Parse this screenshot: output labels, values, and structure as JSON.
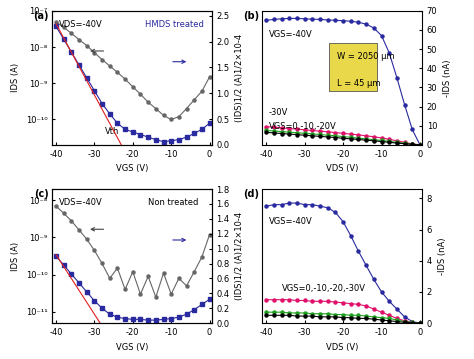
{
  "chart_data": [
    {
      "type": "line",
      "title": "(a)",
      "x_label": "VGS (V)",
      "y_label": "IDS (A)",
      "y2_label": "(IDS)1/2 (A)1/2×10-4",
      "log": "y",
      "x": [
        -40,
        -38,
        -36,
        -34,
        -32,
        -30,
        -28,
        -26,
        -24,
        -22,
        -20,
        -18,
        -16,
        -14,
        -12,
        -10,
        -8,
        -6,
        -4,
        -2,
        0
      ],
      "xlim": [
        -41,
        0.5
      ],
      "xticks": [
        -40,
        -30,
        -20,
        -10,
        0
      ],
      "ylim": [
        2e-11,
        1e-07
      ],
      "yticks": [
        {
          "value": 1e-10,
          "label": "10⁻¹⁰"
        },
        {
          "value": 1e-09,
          "label": "10⁻⁹"
        },
        {
          "value": 1e-08,
          "label": "10⁻⁸"
        },
        {
          "value": 1e-07,
          "label": "10⁻⁷"
        }
      ],
      "y2lim": [
        0.0,
        2.6
      ],
      "y2ticks": [
        0.0,
        0.5,
        1.0,
        1.5,
        2.0,
        2.5
      ],
      "annotations": [
        "VDS=-40V",
        "HMDS treated",
        "Vth"
      ],
      "series": [
        {
          "color": "#666666",
          "marker": "circle",
          "line_style": "solid",
          "values": [
            5e-08,
            3.5e-08,
            2.4e-08,
            1.6e-08,
            1.1e-08,
            7e-09,
            4.5e-09,
            3e-09,
            2e-09,
            1.3e-09,
            8e-10,
            5e-10,
            3e-10,
            2e-10,
            1.3e-10,
            1e-10,
            1.2e-10,
            2e-10,
            3.5e-10,
            6e-10,
            1.5e-09
          ]
        },
        {
          "color": "#2a2aa0",
          "marker": "square",
          "line_style": "solid",
          "axis": "y2",
          "values": [
            2.3,
            2.05,
            1.8,
            1.55,
            1.3,
            1.05,
            0.8,
            0.6,
            0.42,
            0.3,
            0.25,
            0.2,
            0.15,
            0.1,
            0.06,
            0.08,
            0.1,
            0.15,
            0.22,
            0.3,
            0.42
          ]
        },
        {
          "color": "#e02020",
          "line_style": "solid",
          "axis": "y2",
          "x": [
            -40,
            -23
          ],
          "values": [
            2.35,
            0.0
          ]
        }
      ]
    },
    {
      "type": "line",
      "title": "(b)",
      "x_label": "VDS (V)",
      "y_label": "-IDS (nA)",
      "x": [
        -40,
        -38,
        -36,
        -34,
        -32,
        -30,
        -28,
        -26,
        -24,
        -22,
        -20,
        -18,
        -16,
        -14,
        -12,
        -10,
        -8,
        -6,
        -4,
        -2,
        0
      ],
      "xlim": [
        -41,
        0.5
      ],
      "xticks": [
        -40,
        -30,
        -20,
        -10,
        0
      ],
      "ylim": [
        0,
        70
      ],
      "yticks": [
        0,
        10,
        20,
        30,
        40,
        50,
        60,
        70
      ],
      "annotations": [
        "VGS=-40V",
        "-30V",
        "VGS=0,-10,-20V",
        "W = 2050 µm",
        "L = 45 µm"
      ],
      "series": [
        {
          "color": "#2a2aa0",
          "marker": "circle",
          "line_style": "solid",
          "values": [
            65,
            65.5,
            65.8,
            66,
            66,
            65.8,
            65.6,
            65.5,
            65.2,
            65,
            64.8,
            64.5,
            64,
            63,
            61,
            57,
            48,
            35,
            21,
            8,
            0
          ]
        },
        {
          "color": "#e0106a",
          "marker": "circle",
          "line_style": "solid",
          "values": [
            9.5,
            9.2,
            8.8,
            8.5,
            8.2,
            7.8,
            7.5,
            7.1,
            6.8,
            6.4,
            6.0,
            5.6,
            5.2,
            4.7,
            4.2,
            3.6,
            2.9,
            2.1,
            1.3,
            0.5,
            0
          ]
        },
        {
          "color": "#20a020",
          "marker": "circle",
          "line_style": "solid",
          "values": [
            7.5,
            7.2,
            6.9,
            6.6,
            6.3,
            6.0,
            5.7,
            5.4,
            5.0,
            4.7,
            4.3,
            3.9,
            3.5,
            3.1,
            2.7,
            2.3,
            1.8,
            1.3,
            0.8,
            0.3,
            0
          ]
        },
        {
          "color": "#000000",
          "marker": "circle",
          "line_style": "solid",
          "values": [
            6.5,
            6.2,
            5.9,
            5.6,
            5.3,
            5.0,
            4.7,
            4.4,
            4.1,
            3.8,
            3.4,
            3.1,
            2.8,
            2.4,
            2.1,
            1.7,
            1.3,
            0.9,
            0.6,
            0.2,
            0
          ]
        }
      ]
    },
    {
      "type": "line",
      "title": "(c)",
      "x_label": "VGS (V)",
      "y_label": "IDS (A)",
      "y2_label": "(IDS)1/2 (A)1/2×10-4",
      "log": "y",
      "x": [
        -40,
        -38,
        -36,
        -34,
        -32,
        -30,
        -28,
        -26,
        -24,
        -22,
        -20,
        -18,
        -16,
        -14,
        -12,
        -10,
        -8,
        -6,
        -4,
        -2,
        0
      ],
      "xlim": [
        -41,
        0.5
      ],
      "xticks": [
        -40,
        -30,
        -20,
        -10,
        0
      ],
      "ylim": [
        5e-12,
        2e-08
      ],
      "yticks": [
        {
          "value": 1e-11,
          "label": "10⁻¹¹"
        },
        {
          "value": 1e-10,
          "label": "10⁻¹⁰"
        },
        {
          "value": 1e-09,
          "label": "10⁻⁹"
        },
        {
          "value": 1e-08,
          "label": "10⁻⁸"
        }
      ],
      "y2lim": [
        0.0,
        1.8
      ],
      "y2ticks": [
        0.0,
        0.2,
        0.4,
        0.6,
        0.8,
        1.0,
        1.2,
        1.4,
        1.6,
        1.8
      ],
      "annotations": [
        "VDS=-40V",
        "Non treated"
      ],
      "series": [
        {
          "color": "#666666",
          "marker": "circle",
          "line_style": "solid",
          "values": [
            7e-09,
            4.5e-09,
            2.8e-09,
            1.6e-09,
            9e-10,
            4.5e-10,
            2e-10,
            8e-11,
            1.5e-10,
            4e-11,
            1.2e-10,
            3e-11,
            9e-11,
            2.5e-11,
            1.1e-10,
            3e-11,
            8e-11,
            5e-11,
            1.2e-10,
            3e-10,
            1.2e-09
          ]
        },
        {
          "color": "#2a2aa0",
          "marker": "square",
          "line_style": "solid",
          "axis": "y2",
          "values": [
            0.9,
            0.78,
            0.66,
            0.54,
            0.42,
            0.3,
            0.2,
            0.12,
            0.08,
            0.06,
            0.05,
            0.05,
            0.04,
            0.04,
            0.05,
            0.06,
            0.08,
            0.12,
            0.18,
            0.25,
            0.32
          ]
        },
        {
          "color": "#e02020",
          "line_style": "solid",
          "axis": "y2",
          "x": [
            -40,
            -28.5
          ],
          "values": [
            0.92,
            0.0
          ]
        }
      ]
    },
    {
      "type": "line",
      "title": "(d)",
      "x_label": "VDS (V)",
      "y_label": "-IDS (nA)",
      "x": [
        -40,
        -38,
        -36,
        -34,
        -32,
        -30,
        -28,
        -26,
        -24,
        -22,
        -20,
        -18,
        -16,
        -14,
        -12,
        -10,
        -8,
        -6,
        -4,
        -2,
        0
      ],
      "xlim": [
        -41,
        0.5
      ],
      "xticks": [
        -40,
        -30,
        -20,
        -10,
        0
      ],
      "ylim": [
        0,
        8.6
      ],
      "yticks": [
        0,
        2,
        4,
        6,
        8
      ],
      "annotations": [
        "VGS=-40V",
        "VGS=0,-10,-20,-30V"
      ],
      "series": [
        {
          "color": "#2a2aa0",
          "marker": "circle",
          "line_style": "solid",
          "values": [
            7.5,
            7.6,
            7.6,
            7.7,
            7.7,
            7.6,
            7.6,
            7.5,
            7.4,
            7.1,
            6.5,
            5.6,
            4.6,
            3.7,
            2.8,
            2.0,
            1.4,
            0.9,
            0.4,
            0.1,
            0
          ]
        },
        {
          "color": "#e0106a",
          "marker": "circle",
          "line_style": "solid",
          "values": [
            1.5,
            1.5,
            1.5,
            1.5,
            1.45,
            1.45,
            1.4,
            1.4,
            1.4,
            1.35,
            1.3,
            1.25,
            1.2,
            1.1,
            0.9,
            0.7,
            0.5,
            0.3,
            0.15,
            0.05,
            0
          ]
        },
        {
          "color": "#20a020",
          "marker": "circle",
          "line_style": "solid",
          "values": [
            0.7,
            0.7,
            0.7,
            0.65,
            0.65,
            0.65,
            0.6,
            0.6,
            0.6,
            0.55,
            0.55,
            0.5,
            0.5,
            0.45,
            0.4,
            0.35,
            0.3,
            0.2,
            0.1,
            0.05,
            0
          ]
        },
        {
          "color": "#000000",
          "marker": "circle",
          "line_style": "solid",
          "values": [
            0.5,
            0.5,
            0.5,
            0.5,
            0.45,
            0.45,
            0.45,
            0.4,
            0.4,
            0.4,
            0.35,
            0.35,
            0.3,
            0.3,
            0.25,
            0.2,
            0.15,
            0.1,
            0.05,
            0.02,
            0
          ]
        }
      ]
    }
  ]
}
